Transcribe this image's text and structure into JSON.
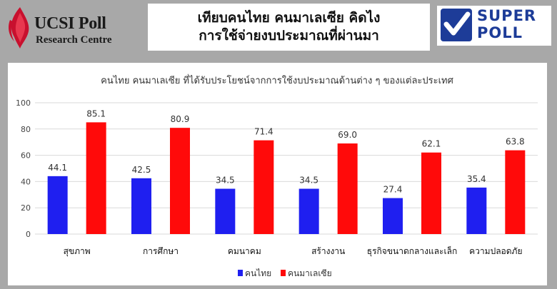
{
  "header": {
    "left_logo": {
      "name": "UCSI Poll",
      "subtitle": "Research Centre"
    },
    "title_line1": "เทียบคนไทย คนมาเลเซีย คิดไง",
    "title_line2": "การใช้จ่ายงบประมาณที่ผ่านมา",
    "right_logo": {
      "line1": "SUPER",
      "line2": "POLL"
    }
  },
  "colors": {
    "thai": "#1f1ff0",
    "malaysia": "#ff0a0a",
    "grid": "#d9d9d9",
    "background": "#a8a8a8"
  },
  "chart_data": {
    "type": "bar",
    "title": "คนไทย คนมาเลเซีย ที่ได้รับประโยชน์จากการใช้งบประมาณด้านต่าง ๆ ของแต่ละประเทศ",
    "categories": [
      "สุขภาพ",
      "การศึกษา",
      "คมนาคม",
      "สร้างงาน",
      "ธุรกิจขนาดกลางและเล็ก",
      "ความปลอดภัย"
    ],
    "series": [
      {
        "name": "คนไทย",
        "values": [
          44.1,
          42.5,
          34.5,
          34.5,
          27.4,
          35.4
        ]
      },
      {
        "name": "คนมาเลเซีย",
        "values": [
          85.1,
          80.9,
          71.4,
          69.0,
          62.1,
          63.8
        ]
      }
    ],
    "ylim": [
      0,
      100
    ],
    "yticks": [
      0,
      20,
      40,
      60,
      80,
      100
    ],
    "xlabel": "",
    "ylabel": "",
    "grid": true,
    "legend": "bottom"
  }
}
